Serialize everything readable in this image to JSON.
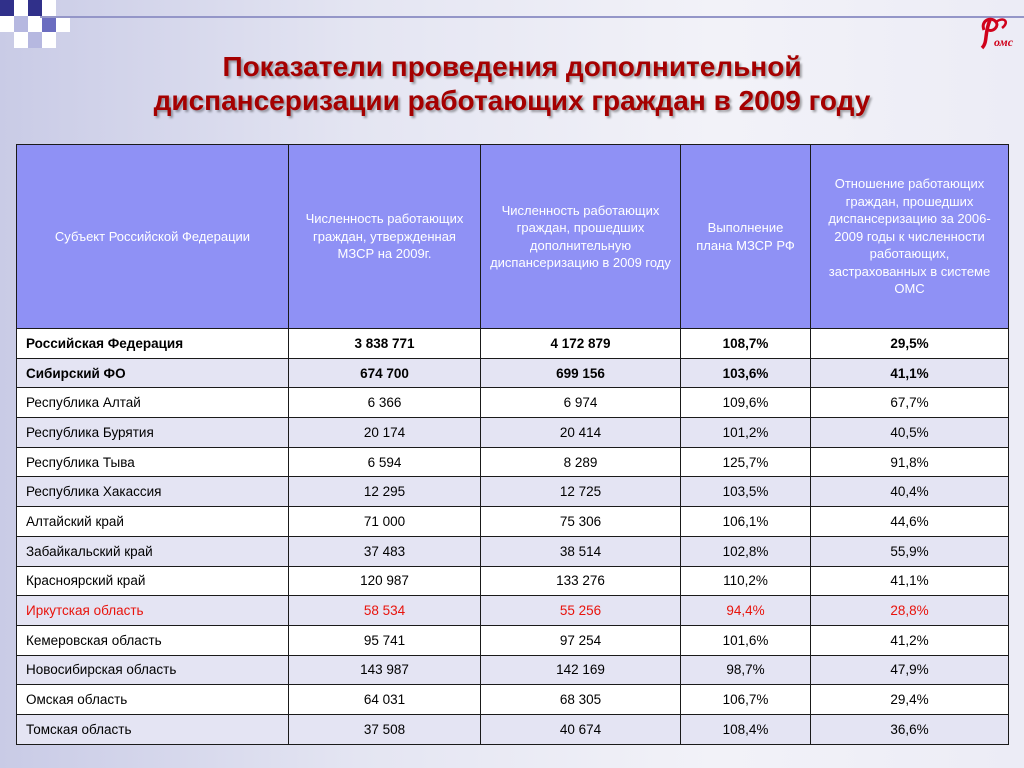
{
  "title": {
    "line1": "Показатели проведения дополнительной",
    "line2": "диспансеризации работающих граждан в 2009 году"
  },
  "logo": {
    "text": "омс",
    "alt": "ФОМС logo"
  },
  "colors": {
    "header_bg": "#8f91f5",
    "title": "#a50000",
    "highlight_row": "#e8130c",
    "row_alt": "#e4e4f3"
  },
  "table": {
    "headers": [
      "Субъект Российской Федерации",
      "Численность работающих граждан, утвержденная МЗСР на 2009г.",
      "Численность работающих граждан, прошедших дополнительную диспансеризацию в 2009 году",
      "Выполнение плана МЗСР РФ",
      "Отношение работающих граждан, прошедших диспансеризацию за 2006-2009 годы к численности работающих, застрахованных в системе ОМС"
    ],
    "rows": [
      {
        "cells": [
          "Российская Федерация",
          "3 838 771",
          "4 172 879",
          "108,7%",
          "29,5%"
        ],
        "bold": true
      },
      {
        "cells": [
          "Сибирский ФО",
          "674 700",
          "699 156",
          "103,6%",
          "41,1%"
        ],
        "bold": true
      },
      {
        "cells": [
          "Республика Алтай",
          "6 366",
          "6 974",
          "109,6%",
          "67,7%"
        ]
      },
      {
        "cells": [
          "Республика Бурятия",
          "20 174",
          "20 414",
          "101,2%",
          "40,5%"
        ]
      },
      {
        "cells": [
          "Республика Тыва",
          "6 594",
          "8 289",
          "125,7%",
          "91,8%"
        ]
      },
      {
        "cells": [
          "Республика Хакассия",
          "12 295",
          "12 725",
          "103,5%",
          "40,4%"
        ]
      },
      {
        "cells": [
          "Алтайский край",
          "71 000",
          "75 306",
          "106,1%",
          "44,6%"
        ]
      },
      {
        "cells": [
          "Забайкальский край",
          "37 483",
          "38 514",
          "102,8%",
          "55,9%"
        ]
      },
      {
        "cells": [
          "Красноярский край",
          "120 987",
          "133 276",
          "110,2%",
          "41,1%"
        ]
      },
      {
        "cells": [
          "Иркутская область",
          "58 534",
          "55 256",
          "94,4%",
          "28,8%"
        ],
        "highlight": true
      },
      {
        "cells": [
          "Кемеровская область",
          "95 741",
          "97 254",
          "101,6%",
          "41,2%"
        ]
      },
      {
        "cells": [
          "Новосибирская область",
          "143 987",
          "142 169",
          "98,7%",
          "47,9%"
        ]
      },
      {
        "cells": [
          "Омская область",
          "64 031",
          "68 305",
          "106,7%",
          "29,4%"
        ]
      },
      {
        "cells": [
          "Томская область",
          "37 508",
          "40 674",
          "108,4%",
          "36,6%"
        ]
      }
    ]
  }
}
